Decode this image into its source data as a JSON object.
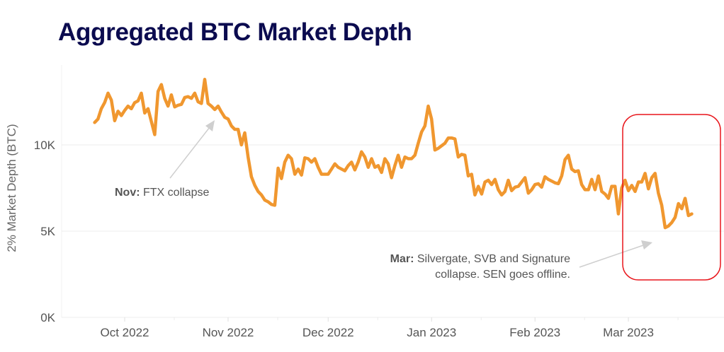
{
  "title": "Aggregated BTC Market Depth",
  "chart_data": {
    "type": "line",
    "title": "Aggregated BTC Market Depth",
    "ylabel": "2% Market Depth (BTC)",
    "xlabel": "",
    "ylim": [
      0,
      14500
    ],
    "xlim": [
      "2022-09-12",
      "2023-03-28"
    ],
    "grid": true,
    "yticks": [
      {
        "value": 0,
        "label": "0K"
      },
      {
        "value": 5000,
        "label": "5K"
      },
      {
        "value": 10000,
        "label": "10K"
      }
    ],
    "xticks": [
      {
        "date": "2022-10-01",
        "label": "Oct 2022"
      },
      {
        "date": "2022-11-01",
        "label": "Nov 2022"
      },
      {
        "date": "2022-12-01",
        "label": "Dec 2022"
      },
      {
        "date": "2023-01-01",
        "label": "Jan 2023"
      },
      {
        "date": "2023-02-01",
        "label": "Feb 2023"
      },
      {
        "date": "2023-03-01",
        "label": "Mar 2023"
      }
    ],
    "line_color": "#f0972f",
    "highlight_color": "#e8151b",
    "highlight_range": [
      "2023-03-01",
      "2023-03-28"
    ],
    "annotations": [
      {
        "bold": "Nov:",
        "text": " FTX collapse",
        "date": "2022-11-09"
      },
      {
        "bold": "Mar:",
        "line1": " Silvergate, SVB and Signature",
        "line2": "collapse. SEN goes offline.",
        "date": "2023-03-12"
      }
    ],
    "points": [
      [
        "2022-09-22",
        11300
      ],
      [
        "2022-09-23",
        11500
      ],
      [
        "2022-09-24",
        12100
      ],
      [
        "2022-09-25",
        12450
      ],
      [
        "2022-09-26",
        13000
      ],
      [
        "2022-09-27",
        12600
      ],
      [
        "2022-09-28",
        11400
      ],
      [
        "2022-09-29",
        11950
      ],
      [
        "2022-09-30",
        11700
      ],
      [
        "2022-10-01",
        12000
      ],
      [
        "2022-10-02",
        12250
      ],
      [
        "2022-10-03",
        12100
      ],
      [
        "2022-10-04",
        12450
      ],
      [
        "2022-10-05",
        12550
      ],
      [
        "2022-10-06",
        13000
      ],
      [
        "2022-10-07",
        11850
      ],
      [
        "2022-10-08",
        12100
      ],
      [
        "2022-10-09",
        11350
      ],
      [
        "2022-10-10",
        10600
      ],
      [
        "2022-10-11",
        13100
      ],
      [
        "2022-10-12",
        13500
      ],
      [
        "2022-10-13",
        12700
      ],
      [
        "2022-10-14",
        12250
      ],
      [
        "2022-10-15",
        12900
      ],
      [
        "2022-10-16",
        12200
      ],
      [
        "2022-10-17",
        12300
      ],
      [
        "2022-10-18",
        12350
      ],
      [
        "2022-10-19",
        12750
      ],
      [
        "2022-10-20",
        12800
      ],
      [
        "2022-10-21",
        12700
      ],
      [
        "2022-10-22",
        13000
      ],
      [
        "2022-10-23",
        12500
      ],
      [
        "2022-10-24",
        12400
      ],
      [
        "2022-10-25",
        13800
      ],
      [
        "2022-10-26",
        12400
      ],
      [
        "2022-10-27",
        12250
      ],
      [
        "2022-10-28",
        12050
      ],
      [
        "2022-10-29",
        12250
      ],
      [
        "2022-10-30",
        11900
      ],
      [
        "2022-10-31",
        11600
      ],
      [
        "2022-11-01",
        11500
      ],
      [
        "2022-11-02",
        11100
      ],
      [
        "2022-11-03",
        10900
      ],
      [
        "2022-11-04",
        10900
      ],
      [
        "2022-11-05",
        10000
      ],
      [
        "2022-11-06",
        10700
      ],
      [
        "2022-11-07",
        9300
      ],
      [
        "2022-11-08",
        8150
      ],
      [
        "2022-11-09",
        7650
      ],
      [
        "2022-11-10",
        7300
      ],
      [
        "2022-11-11",
        7100
      ],
      [
        "2022-11-12",
        6800
      ],
      [
        "2022-11-13",
        6700
      ],
      [
        "2022-11-14",
        6550
      ],
      [
        "2022-11-15",
        6500
      ],
      [
        "2022-11-16",
        8650
      ],
      [
        "2022-11-17",
        8050
      ],
      [
        "2022-11-18",
        9000
      ],
      [
        "2022-11-19",
        9400
      ],
      [
        "2022-11-20",
        9200
      ],
      [
        "2022-11-21",
        8300
      ],
      [
        "2022-11-22",
        8600
      ],
      [
        "2022-11-23",
        8250
      ],
      [
        "2022-11-24",
        9250
      ],
      [
        "2022-11-25",
        9200
      ],
      [
        "2022-11-26",
        9000
      ],
      [
        "2022-11-27",
        9200
      ],
      [
        "2022-11-28",
        8700
      ],
      [
        "2022-11-29",
        8300
      ],
      [
        "2022-11-30",
        8300
      ],
      [
        "2022-12-01",
        8300
      ],
      [
        "2022-12-02",
        8600
      ],
      [
        "2022-12-03",
        8900
      ],
      [
        "2022-12-04",
        8700
      ],
      [
        "2022-12-05",
        8600
      ],
      [
        "2022-12-06",
        8500
      ],
      [
        "2022-12-07",
        8800
      ],
      [
        "2022-12-08",
        9000
      ],
      [
        "2022-12-09",
        8550
      ],
      [
        "2022-12-10",
        9000
      ],
      [
        "2022-12-11",
        9600
      ],
      [
        "2022-12-12",
        9300
      ],
      [
        "2022-12-13",
        8700
      ],
      [
        "2022-12-14",
        9200
      ],
      [
        "2022-12-15",
        8700
      ],
      [
        "2022-12-16",
        8800
      ],
      [
        "2022-12-17",
        8400
      ],
      [
        "2022-12-18",
        9200
      ],
      [
        "2022-12-19",
        8900
      ],
      [
        "2022-12-20",
        8100
      ],
      [
        "2022-12-21",
        8800
      ],
      [
        "2022-12-22",
        9400
      ],
      [
        "2022-12-23",
        8700
      ],
      [
        "2022-12-24",
        9300
      ],
      [
        "2022-12-25",
        9200
      ],
      [
        "2022-12-26",
        9200
      ],
      [
        "2022-12-27",
        9400
      ],
      [
        "2022-12-28",
        10100
      ],
      [
        "2022-12-29",
        10750
      ],
      [
        "2022-12-30",
        11100
      ],
      [
        "2022-12-31",
        12250
      ],
      [
        "2023-01-01",
        11500
      ],
      [
        "2023-01-02",
        9700
      ],
      [
        "2023-01-03",
        9800
      ],
      [
        "2023-01-04",
        9950
      ],
      [
        "2023-01-05",
        10100
      ],
      [
        "2023-01-06",
        10400
      ],
      [
        "2023-01-07",
        10400
      ],
      [
        "2023-01-08",
        10350
      ],
      [
        "2023-01-09",
        9300
      ],
      [
        "2023-01-10",
        9450
      ],
      [
        "2023-01-11",
        9400
      ],
      [
        "2023-01-12",
        8200
      ],
      [
        "2023-01-13",
        8300
      ],
      [
        "2023-01-14",
        7100
      ],
      [
        "2023-01-15",
        7600
      ],
      [
        "2023-01-16",
        7150
      ],
      [
        "2023-01-17",
        7850
      ],
      [
        "2023-01-18",
        7950
      ],
      [
        "2023-01-19",
        7700
      ],
      [
        "2023-01-20",
        8000
      ],
      [
        "2023-01-21",
        7400
      ],
      [
        "2023-01-22",
        7100
      ],
      [
        "2023-01-23",
        7300
      ],
      [
        "2023-01-24",
        7950
      ],
      [
        "2023-01-25",
        7350
      ],
      [
        "2023-01-26",
        7550
      ],
      [
        "2023-01-27",
        7600
      ],
      [
        "2023-01-28",
        7850
      ],
      [
        "2023-01-29",
        8100
      ],
      [
        "2023-01-30",
        7200
      ],
      [
        "2023-01-31",
        7400
      ],
      [
        "2023-02-01",
        7700
      ],
      [
        "2023-02-02",
        7750
      ],
      [
        "2023-02-03",
        7550
      ],
      [
        "2023-02-04",
        8150
      ],
      [
        "2023-02-05",
        8000
      ],
      [
        "2023-02-06",
        7900
      ],
      [
        "2023-02-07",
        7800
      ],
      [
        "2023-02-08",
        7750
      ],
      [
        "2023-02-09",
        8200
      ],
      [
        "2023-02-10",
        9150
      ],
      [
        "2023-02-11",
        9400
      ],
      [
        "2023-02-12",
        8600
      ],
      [
        "2023-02-13",
        8450
      ],
      [
        "2023-02-14",
        8500
      ],
      [
        "2023-02-15",
        7700
      ],
      [
        "2023-02-16",
        7400
      ],
      [
        "2023-02-17",
        7400
      ],
      [
        "2023-02-18",
        8000
      ],
      [
        "2023-02-19",
        7400
      ],
      [
        "2023-02-20",
        8200
      ],
      [
        "2023-02-21",
        7300
      ],
      [
        "2023-02-22",
        7150
      ],
      [
        "2023-02-23",
        6900
      ],
      [
        "2023-02-24",
        7600
      ],
      [
        "2023-02-25",
        7600
      ],
      [
        "2023-02-26",
        6000
      ],
      [
        "2023-02-27",
        7500
      ],
      [
        "2023-02-28",
        7950
      ],
      [
        "2023-03-01",
        7350
      ],
      [
        "2023-03-02",
        7650
      ],
      [
        "2023-03-03",
        7300
      ],
      [
        "2023-03-04",
        7850
      ],
      [
        "2023-03-05",
        7850
      ],
      [
        "2023-03-06",
        8350
      ],
      [
        "2023-03-07",
        7450
      ],
      [
        "2023-03-08",
        8100
      ],
      [
        "2023-03-09",
        8350
      ],
      [
        "2023-03-10",
        7200
      ],
      [
        "2023-03-11",
        6500
      ],
      [
        "2023-03-12",
        5200
      ],
      [
        "2023-03-13",
        5300
      ],
      [
        "2023-03-14",
        5500
      ],
      [
        "2023-03-15",
        5800
      ],
      [
        "2023-03-16",
        6600
      ],
      [
        "2023-03-17",
        6300
      ],
      [
        "2023-03-18",
        6900
      ],
      [
        "2023-03-19",
        5900
      ],
      [
        "2023-03-20",
        6000
      ]
    ]
  }
}
